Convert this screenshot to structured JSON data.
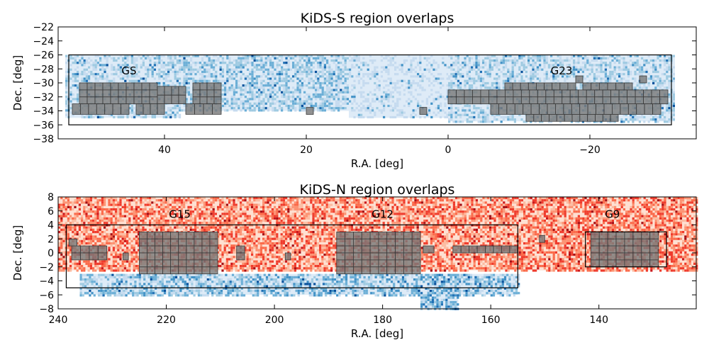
{
  "colors": {
    "blue_light": "#d6e6f4",
    "blue_mid": "#6baed6",
    "blue_dark": "#08519c",
    "red_light": "#fcbba1",
    "red_mid": "#fb6a4a",
    "red_dark": "#a50f15",
    "tile": "#7a7a7a",
    "tile_edge": "#3a3a3a"
  },
  "chart_data": [
    {
      "type": "heatmap",
      "title": "KiDS-S region overlaps",
      "xlabel": "R.A. [deg]",
      "ylabel": "Dec. [deg]",
      "xlim": [
        55,
        -35
      ],
      "ylim": [
        -38,
        -22
      ],
      "xticks": [
        40,
        20,
        0,
        -20
      ],
      "xtick_labels": [
        "40",
        "20",
        "0",
        "−20"
      ],
      "yticks": [
        -38,
        -36,
        -34,
        -32,
        -30,
        -28,
        -26,
        -24,
        -22
      ],
      "ytick_labels": [
        "−38",
        "−36",
        "−34",
        "−32",
        "−30",
        "−28",
        "−26",
        "−24",
        "−22"
      ],
      "density_regions": [
        {
          "ra": [
            54,
            38
          ],
          "dec": [
            -35,
            -26
          ],
          "level": 0.35
        },
        {
          "ra": [
            38,
            14
          ],
          "dec": [
            -34,
            -26
          ],
          "level": 0.4
        },
        {
          "ra": [
            14,
            0
          ],
          "dec": [
            -35,
            -26
          ],
          "level": 0.25
        },
        {
          "ra": [
            0,
            -32
          ],
          "dec": [
            -35.5,
            -26
          ],
          "level": 0.35
        }
      ],
      "regions": [
        {
          "name": "GS",
          "ra": [
            53.5,
            -31.5
          ],
          "dec": [
            -36,
            -26
          ],
          "label_ra": 45,
          "label_dec": -28.3
        },
        {
          "name": "G23",
          "ra": null,
          "dec": null,
          "label_ra": -16,
          "label_dec": -28.3
        }
      ],
      "tiles": [
        {
          "ra": [
            52,
            41
          ],
          "dec": [
            -33,
            -30
          ]
        },
        {
          "ra": [
            53,
            45
          ],
          "dec": [
            -34.5,
            -33
          ]
        },
        {
          "ra": [
            41,
            37
          ],
          "dec": [
            -33,
            -30.5
          ]
        },
        {
          "ra": [
            36,
            32
          ],
          "dec": [
            -33,
            -30
          ]
        },
        {
          "ra": [
            37,
            32
          ],
          "dec": [
            -34.5,
            -33
          ]
        },
        {
          "ra": [
            44,
            40
          ],
          "dec": [
            -34.5,
            -33
          ]
        },
        {
          "ra": [
            20,
            19
          ],
          "dec": [
            -34.5,
            -33.5
          ]
        },
        {
          "ra": [
            4,
            3
          ],
          "dec": [
            -34.5,
            -33.5
          ]
        },
        {
          "ra": [
            0,
            -31
          ],
          "dec": [
            -33,
            -31
          ]
        },
        {
          "ra": [
            -6,
            -30
          ],
          "dec": [
            -34.5,
            -33
          ]
        },
        {
          "ra": [
            -11,
            -24
          ],
          "dec": [
            -35.5,
            -34.5
          ]
        },
        {
          "ra": [
            -8,
            -18
          ],
          "dec": [
            -31,
            -30
          ]
        },
        {
          "ra": [
            -19,
            -26
          ],
          "dec": [
            -31,
            -30
          ]
        },
        {
          "ra": [
            -18,
            -19
          ],
          "dec": [
            -30,
            -29
          ]
        },
        {
          "ra": [
            -27,
            -28
          ],
          "dec": [
            -30,
            -29
          ]
        }
      ]
    },
    {
      "type": "heatmap",
      "title": "KiDS-N region overlaps",
      "xlabel": "R.A. [deg]",
      "ylabel": "Dec. [deg]",
      "xlim": [
        240,
        122
      ],
      "ylim": [
        -8,
        8
      ],
      "xticks": [
        240,
        220,
        200,
        180,
        160,
        140
      ],
      "xtick_labels": [
        "240",
        "220",
        "200",
        "180",
        "160",
        "140"
      ],
      "yticks": [
        -8,
        -6,
        -4,
        -2,
        0,
        2,
        4,
        6,
        8
      ],
      "ytick_labels": [
        "−8",
        "−6",
        "−4",
        "−2",
        "0",
        "2",
        "4",
        "6",
        "8"
      ],
      "density_regions": [
        {
          "ra": [
            240,
            122
          ],
          "dec": [
            -2.5,
            8
          ],
          "level": 0.5,
          "cmap": "red"
        },
        {
          "ra": [
            236,
            155
          ],
          "dec": [
            -6,
            -3
          ],
          "level": 0.45,
          "cmap": "blue"
        },
        {
          "ra": [
            173,
            166
          ],
          "dec": [
            -8,
            -3
          ],
          "level": 0.55,
          "cmap": "blue"
        }
      ],
      "regions": [
        {
          "name": "G15",
          "ra": [
            238.5,
            155
          ],
          "dec": [
            -5,
            4
          ],
          "label_ra": 217.5,
          "label_dec": 5.5
        },
        {
          "name": "G12",
          "ra": null,
          "dec": null,
          "label_ra": 180,
          "label_dec": 5.5
        },
        {
          "name": "G9",
          "ra": [
            142.5,
            127.5
          ],
          "dec": [
            -2,
            3
          ],
          "label_ra": 137.5,
          "label_dec": 5.5
        }
      ],
      "tiles": [
        {
          "ra": [
            225,
            210.5
          ],
          "dec": [
            -3,
            3
          ]
        },
        {
          "ra": [
            237.5,
            231
          ],
          "dec": [
            -1,
            1
          ]
        },
        {
          "ra": [
            238,
            236.5
          ],
          "dec": [
            1,
            2
          ]
        },
        {
          "ra": [
            228,
            227
          ],
          "dec": [
            -1,
            0
          ]
        },
        {
          "ra": [
            207,
            205.5
          ],
          "dec": [
            -1,
            1
          ]
        },
        {
          "ra": [
            198,
            197
          ],
          "dec": [
            -1,
            0
          ]
        },
        {
          "ra": [
            188.5,
            173
          ],
          "dec": [
            -3,
            3
          ]
        },
        {
          "ra": [
            172.5,
            170.5
          ],
          "dec": [
            0,
            1
          ]
        },
        {
          "ra": [
            167,
            155
          ],
          "dec": [
            0,
            1
          ]
        },
        {
          "ra": [
            151,
            150
          ],
          "dec": [
            1.5,
            2.5
          ]
        },
        {
          "ra": [
            141.5,
            129
          ],
          "dec": [
            -2,
            3
          ]
        }
      ]
    }
  ]
}
